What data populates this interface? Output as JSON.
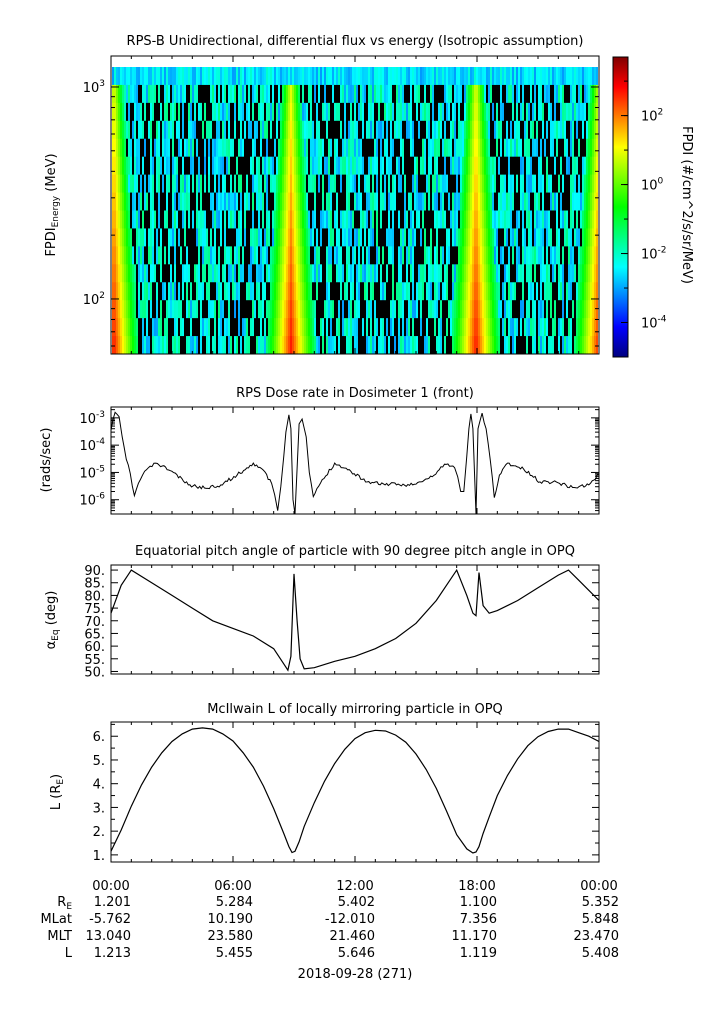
{
  "chart_data": [
    {
      "type": "heatmap",
      "title": "RPS-B  Unidirectional, differential flux vs energy (Isotropic assumption)",
      "ylabel": "FPDI",
      "ylabel_subscript": "Energy",
      "ylabel_unit": "(MeV)",
      "yscale": "log",
      "ylim": [
        55,
        1400
      ],
      "yticks": [
        {
          "value": 100,
          "base": "10",
          "exp": "2"
        },
        {
          "value": 1000,
          "base": "10",
          "exp": "3"
        }
      ],
      "xlim_hours": [
        0,
        24
      ],
      "colorbar": {
        "label": "FPDI (#/cm^2/s/sr/MeV)",
        "scale": "log",
        "range": [
          1e-05,
          5000
        ],
        "ticks": [
          {
            "value": 0.0001,
            "base": "10",
            "exp": "-4"
          },
          {
            "value": 0.01,
            "base": "10",
            "exp": "-2"
          },
          {
            "value": 1,
            "base": "10",
            "exp": "0"
          },
          {
            "value": 100,
            "base": "10",
            "exp": "2"
          }
        ],
        "colors": [
          "#00007f",
          "#0000ff",
          "#007fff",
          "#00ffff",
          "#00ff7f",
          "#00ff00",
          "#7fff00",
          "#ffff00",
          "#ff7f00",
          "#ff0000",
          "#7f0000"
        ]
      },
      "belt_passes_hours": [
        0.1,
        8.8,
        17.9,
        23.95
      ]
    },
    {
      "type": "line",
      "title": "RPS  Dose rate in Dosimeter 1 (front)",
      "ylabel": "(rads/sec)",
      "yscale": "log",
      "ylim": [
        3e-07,
        0.0025
      ],
      "yticks": [
        {
          "value": 1e-06,
          "base": "10",
          "exp": "-6"
        },
        {
          "value": 1e-05,
          "base": "10",
          "exp": "-5"
        },
        {
          "value": 0.0001,
          "base": "10",
          "exp": "-4"
        },
        {
          "value": 0.001,
          "base": "10",
          "exp": "-3"
        }
      ],
      "x_hours": [
        0,
        0.2,
        0.4,
        0.55,
        0.75,
        0.95,
        1.15,
        1.35,
        1.65,
        2.2,
        3.0,
        3.8,
        4.6,
        5.4,
        6.2,
        7.0,
        7.4,
        7.9,
        8.05,
        8.2,
        8.35,
        8.5,
        8.6,
        8.75,
        8.85,
        8.95,
        9.05,
        9.25,
        9.4,
        9.6,
        9.75,
        9.95,
        10.3,
        11.0,
        11.8,
        12.6,
        13.4,
        14.2,
        15.0,
        15.8,
        16.4,
        16.9,
        17.05,
        17.2,
        17.35,
        17.5,
        17.6,
        17.7,
        17.8,
        17.95,
        18.05,
        18.25,
        18.45,
        18.65,
        18.85,
        19.1,
        19.5,
        20.3,
        21.1,
        21.9,
        22.7,
        23.5,
        24.0
      ],
      "y": [
        0.00035,
        0.0016,
        0.0011,
        0.0002,
        3e-05,
        9e-06,
        1.4e-06,
        4e-06,
        1.1e-05,
        2.2e-05,
        1.1e-05,
        3.5e-06,
        2.7e-06,
        3.5e-06,
        8e-06,
        2.2e-05,
        1.4e-05,
        4e-06,
        1.5e-06,
        4e-07,
        3e-06,
        4e-05,
        0.0003,
        0.0013,
        0.0004,
        1e-06,
        3e-07,
        0.0006,
        0.0009,
        0.0002,
        1e-05,
        1.3e-06,
        4e-06,
        2.2e-05,
        1.1e-05,
        4.5e-06,
        3.8e-06,
        3.5e-06,
        3.7e-06,
        7e-06,
        2e-05,
        1.5e-05,
        7e-06,
        2e-06,
        2e-06,
        4e-05,
        0.0004,
        0.0014,
        0.0004,
        3e-07,
        0.0004,
        0.0015,
        0.0004,
        3e-05,
        1.2e-06,
        8e-06,
        2.2e-05,
        1.3e-05,
        4.5e-06,
        4.5e-06,
        2.8e-06,
        3.5e-06,
        8.5e-06
      ]
    },
    {
      "type": "line",
      "title": "Equatorial pitch angle of particle with 90 degree pitch angle in OPQ",
      "ylabel": "α",
      "ylabel_subscript": "Eq",
      "ylabel_unit": "(deg)",
      "ylim": [
        49,
        92
      ],
      "yticks": [
        50,
        55,
        60,
        65,
        70,
        75,
        80,
        85,
        90
      ],
      "ytick_labels": [
        "50.",
        "55.",
        "60.",
        "65.",
        "70.",
        "75.",
        "80.",
        "85.",
        "90."
      ],
      "x_hours": [
        0,
        0.5,
        1.0,
        2,
        3,
        4,
        5,
        6,
        7,
        8.0,
        8.5,
        8.7,
        8.85,
        9.0,
        9.15,
        9.3,
        9.5,
        10,
        11,
        12,
        13,
        14,
        15,
        16,
        17.0,
        17.5,
        17.8,
        17.95,
        18.1,
        18.3,
        18.6,
        19,
        20,
        21,
        22.0,
        22.5,
        23,
        23.5,
        24.0
      ],
      "y": [
        73,
        84,
        90,
        85,
        80,
        75,
        70,
        67,
        64,
        59,
        53,
        50.5,
        56,
        88.5,
        70,
        55,
        51,
        51.5,
        54,
        56,
        59,
        63,
        69,
        78,
        90,
        80,
        73,
        72,
        89,
        76,
        73,
        74,
        78,
        83,
        88,
        90,
        86,
        82,
        78
      ]
    },
    {
      "type": "line",
      "title": "McIlwain L of locally mirroring particle in OPQ",
      "ylabel": "L (R",
      "ylabel_subscript": "E",
      "ylabel_unit": ")",
      "ylim": [
        0.7,
        6.6
      ],
      "yticks": [
        1,
        2,
        3,
        4,
        5,
        6
      ],
      "ytick_labels": [
        "1.",
        "2.",
        "3.",
        "4.",
        "5.",
        "6."
      ],
      "x_hours": [
        0,
        0.5,
        1,
        1.5,
        2,
        2.5,
        3,
        3.5,
        4,
        4.5,
        5,
        5.5,
        6,
        6.5,
        7,
        7.5,
        8,
        8.5,
        8.75,
        8.9,
        9.05,
        9.25,
        9.5,
        10,
        10.5,
        11,
        11.5,
        12,
        12.5,
        13,
        13.5,
        14,
        14.5,
        15,
        15.5,
        16,
        16.5,
        17,
        17.5,
        17.8,
        17.95,
        18.1,
        18.3,
        18.6,
        19,
        19.5,
        20,
        20.5,
        21,
        21.5,
        22,
        22.5,
        23,
        23.5,
        24
      ],
      "y": [
        1.15,
        2.05,
        3.05,
        3.95,
        4.7,
        5.3,
        5.78,
        6.1,
        6.3,
        6.35,
        6.3,
        6.1,
        5.8,
        5.3,
        4.7,
        3.9,
        2.95,
        1.9,
        1.35,
        1.1,
        1.15,
        1.55,
        2.2,
        3.2,
        4.1,
        4.85,
        5.45,
        5.9,
        6.15,
        6.25,
        6.22,
        6.05,
        5.75,
        5.25,
        4.6,
        3.8,
        2.85,
        1.85,
        1.25,
        1.08,
        1.12,
        1.35,
        1.9,
        2.6,
        3.5,
        4.35,
        5.05,
        5.6,
        5.98,
        6.2,
        6.3,
        6.3,
        6.15,
        6.0,
        5.78
      ]
    }
  ],
  "xaxis": {
    "tick_labels": [
      "00:00",
      "06:00",
      "12:00",
      "18:00",
      "00:00"
    ],
    "row_labels": [
      "R",
      "MLat",
      "MLT",
      "L"
    ],
    "row_label_subscripts": [
      "E",
      "",
      "",
      ""
    ],
    "rows": [
      [
        "1.201",
        "5.284",
        "5.402",
        "1.100",
        "5.352"
      ],
      [
        "-5.762",
        "10.190",
        "-12.010",
        "7.356",
        "5.848"
      ],
      [
        "13.040",
        "23.580",
        "21.460",
        "11.170",
        "23.470"
      ],
      [
        "1.213",
        "5.455",
        "5.646",
        "1.119",
        "5.408"
      ]
    ],
    "date_label": "2018-09-28 (271)"
  }
}
